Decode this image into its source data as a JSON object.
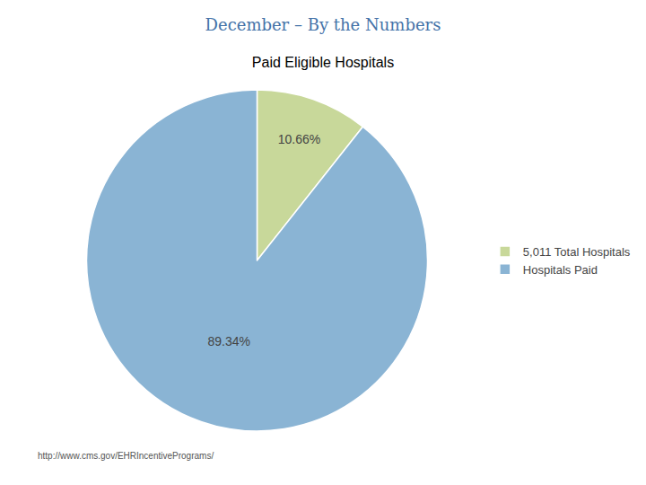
{
  "chart_data": {
    "type": "pie",
    "title": "December – By the Numbers",
    "subtitle": "Paid Eligible Hospitals",
    "categories": [
      "5,011 Total Hospitals",
      "Hospitals Paid"
    ],
    "values": [
      10.66,
      89.34
    ],
    "value_labels": [
      "10.66%",
      "89.34%"
    ],
    "colors": [
      "#c8d89a",
      "#8ab4d4"
    ],
    "data_labels": true,
    "legend": "right",
    "annotations": [
      "http://www.cms.gov/EHRIncentivePrograms/"
    ]
  }
}
